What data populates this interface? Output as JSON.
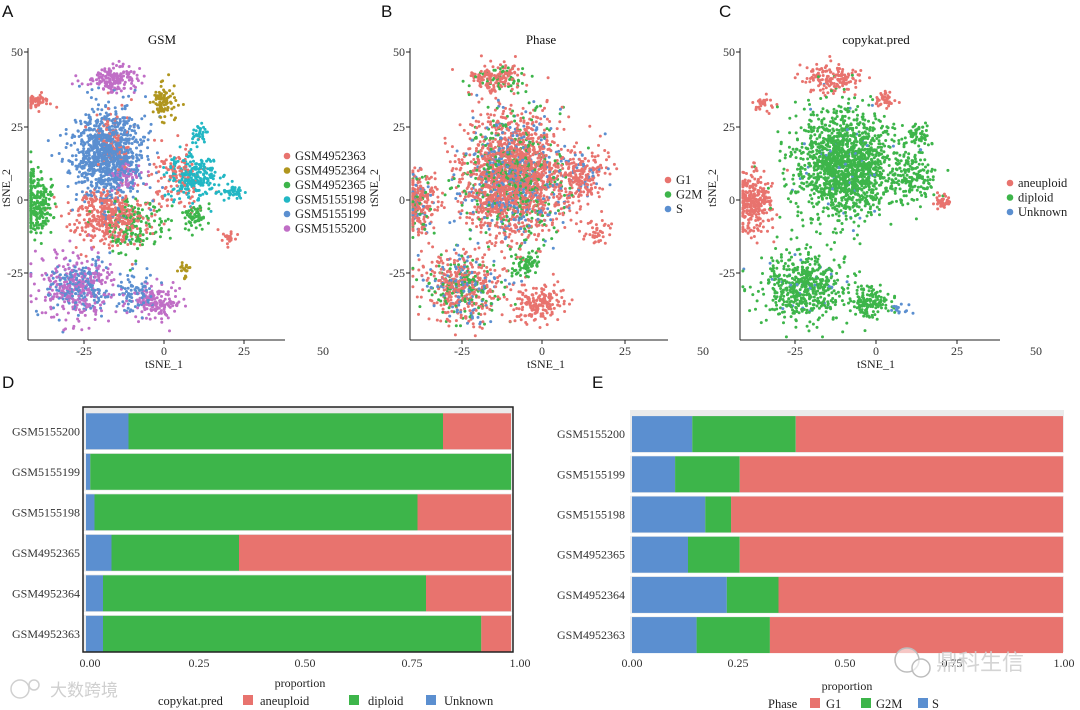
{
  "colors": {
    "red": "#E8736E",
    "green": "#3DB54A",
    "blue": "#5B8FD0",
    "olive": "#B0961E",
    "cyan": "#22B7C4",
    "magenta": "#C06EC6"
  },
  "panels": {
    "a": "A",
    "b": "B",
    "c": "C",
    "d": "D",
    "e": "E"
  },
  "watermarks": {
    "left": "大数跨境",
    "right": "鼎科生信"
  },
  "chart_data": [
    {
      "type": "scatter",
      "panel": "A",
      "title": "GSM",
      "xlabel": "tSNE_1",
      "ylabel": "tSNE_2",
      "xticks": [
        "-25",
        "0",
        "25",
        "50"
      ],
      "yticks": [
        "50",
        "25",
        "0",
        "-25"
      ],
      "xlim": [
        -40,
        50
      ],
      "ylim": [
        -45,
        50
      ],
      "legend_position": "right",
      "series": [
        {
          "name": "GSM4952363",
          "color": "#E8736E",
          "clusters": [
            [
              -12,
              -5,
              12,
              8,
              420
            ],
            [
              -38,
              33,
              5,
              2,
              60
            ],
            [
              -10,
              20,
              6,
              10,
              80
            ],
            [
              12,
              8,
              8,
              10,
              120
            ],
            [
              30,
              -12,
              2,
              2,
              20
            ]
          ]
        },
        {
          "name": "GSM4952364",
          "color": "#B0961E",
          "clusters": [
            [
              8,
              32,
              4,
              5,
              90
            ],
            [
              15,
              -22,
              2,
              3,
              20
            ]
          ]
        },
        {
          "name": "GSM4952365",
          "color": "#3DB54A",
          "clusters": [
            [
              -38,
              0,
              6,
              9,
              300
            ],
            [
              -2,
              -8,
              10,
              8,
              160
            ],
            [
              18,
              -5,
              4,
              4,
              60
            ]
          ]
        },
        {
          "name": "GSM5155198",
          "color": "#22B7C4",
          "clusters": [
            [
              18,
              8,
              8,
              7,
              260
            ],
            [
              32,
              3,
              3,
              2,
              40
            ],
            [
              20,
              22,
              3,
              3,
              30
            ]
          ]
        },
        {
          "name": "GSM5155199",
          "color": "#5B8FD0",
          "clusters": [
            [
              -12,
              15,
              11,
              14,
              950
            ],
            [
              -22,
              -28,
              10,
              8,
              200
            ],
            [
              -2,
              -30,
              6,
              6,
              80
            ]
          ]
        },
        {
          "name": "GSM5155200",
          "color": "#C06EC6",
          "clusters": [
            [
              -10,
              40,
              8,
              4,
              180
            ],
            [
              -23,
              -28,
              12,
              10,
              300
            ],
            [
              5,
              -33,
              7,
              5,
              160
            ],
            [
              -5,
              8,
              5,
              4,
              60
            ]
          ]
        }
      ]
    },
    {
      "type": "scatter",
      "panel": "B",
      "title": "Phase",
      "xlabel": "tSNE_1",
      "ylabel": "tSNE_2",
      "xticks": [
        "-25",
        "0",
        "25",
        "50"
      ],
      "yticks": [
        "50",
        "25",
        "0",
        "-25"
      ],
      "xlim": [
        -40,
        50
      ],
      "ylim": [
        -45,
        50
      ],
      "legend_position": "right",
      "series": [
        {
          "name": "G1",
          "color": "#E8736E",
          "clusters": [
            [
              -4,
              8,
              16,
              18,
              1500
            ],
            [
              -38,
              0,
              6,
              9,
              260
            ],
            [
              -22,
              -28,
              12,
              10,
              320
            ],
            [
              5,
              -33,
              8,
              5,
              180
            ],
            [
              -10,
              40,
              8,
              4,
              140
            ],
            [
              20,
              8,
              8,
              8,
              180
            ],
            [
              25,
              -10,
              4,
              4,
              40
            ]
          ]
        },
        {
          "name": "G2M",
          "color": "#3DB54A",
          "clusters": [
            [
              -4,
              8,
              16,
              18,
              380
            ],
            [
              -22,
              -28,
              12,
              10,
              140
            ],
            [
              0,
              -20,
              5,
              4,
              80
            ],
            [
              -10,
              40,
              8,
              4,
              50
            ],
            [
              -38,
              0,
              6,
              9,
              50
            ]
          ]
        },
        {
          "name": "S",
          "color": "#5B8FD0",
          "clusters": [
            [
              -4,
              8,
              16,
              18,
              380
            ],
            [
              -22,
              -28,
              12,
              10,
              110
            ],
            [
              -38,
              0,
              6,
              9,
              40
            ],
            [
              20,
              8,
              8,
              8,
              40
            ]
          ]
        }
      ]
    },
    {
      "type": "scatter",
      "panel": "C",
      "title": "copykat.pred",
      "xlabel": "tSNE_1",
      "ylabel": "tSNE_2",
      "xticks": [
        "-25",
        "0",
        "25",
        "50"
      ],
      "yticks": [
        "50",
        "25",
        "0",
        "-25"
      ],
      "xlim": [
        -40,
        50
      ],
      "ylim": [
        -45,
        50
      ],
      "legend_position": "right",
      "series": [
        {
          "name": "aneuploid",
          "color": "#E8736E",
          "clusters": [
            [
              -35,
              0,
              6,
              9,
              300
            ],
            [
              -8,
              40,
              8,
              4,
              150
            ],
            [
              10,
              33,
              3,
              3,
              40
            ],
            [
              30,
              0,
              3,
              2,
              40
            ],
            [
              -32,
              32,
              3,
              2,
              30
            ]
          ]
        },
        {
          "name": "diploid",
          "color": "#3DB54A",
          "clusters": [
            [
              -4,
              12,
              16,
              16,
              1500
            ],
            [
              -18,
              -28,
              13,
              10,
              500
            ],
            [
              5,
              -33,
              7,
              5,
              150
            ],
            [
              20,
              8,
              7,
              8,
              150
            ],
            [
              22,
              22,
              3,
              3,
              50
            ]
          ]
        },
        {
          "name": "Unknown",
          "color": "#5B8FD0",
          "clusters": [
            [
              -4,
              12,
              16,
              16,
              40
            ],
            [
              -18,
              -28,
              13,
              10,
              30
            ],
            [
              15,
              -35,
              3,
              2,
              15
            ]
          ]
        }
      ]
    },
    {
      "type": "bar",
      "panel": "D",
      "orientation": "horizontal",
      "stacked": true,
      "categories": [
        "GSM5155200",
        "GSM5155199",
        "GSM5155198",
        "GSM4952365",
        "GSM4952364",
        "GSM4952363"
      ],
      "xlabel": "proportion",
      "xlim": [
        0,
        1
      ],
      "xticks": [
        "0.00",
        "0.25",
        "0.50",
        "0.75",
        "1.00"
      ],
      "legend_title": "copykat.pred",
      "legend_position": "bottom",
      "series": [
        {
          "name": "Unknown",
          "color": "#5B8FD0",
          "values": [
            0.1,
            0.01,
            0.02,
            0.06,
            0.04,
            0.04
          ]
        },
        {
          "name": "diploid",
          "color": "#3DB54A",
          "values": [
            0.74,
            0.99,
            0.76,
            0.3,
            0.76,
            0.89
          ]
        },
        {
          "name": "aneuploid",
          "color": "#E8736E",
          "values": [
            0.16,
            0.0,
            0.22,
            0.64,
            0.2,
            0.07
          ]
        }
      ]
    },
    {
      "type": "bar",
      "panel": "E",
      "orientation": "horizontal",
      "stacked": true,
      "categories": [
        "GSM5155200",
        "GSM5155199",
        "GSM5155198",
        "GSM4952365",
        "GSM4952364",
        "GSM4952363"
      ],
      "xlabel": "proportion",
      "xlim": [
        0,
        1
      ],
      "xticks": [
        "0.00",
        "0.25",
        "0.50",
        "0.75",
        "1.00"
      ],
      "legend_title": "Phase",
      "legend_position": "bottom",
      "series": [
        {
          "name": "S",
          "color": "#5B8FD0",
          "values": [
            0.14,
            0.1,
            0.17,
            0.13,
            0.22,
            0.15
          ]
        },
        {
          "name": "G2M",
          "color": "#3DB54A",
          "values": [
            0.24,
            0.15,
            0.06,
            0.12,
            0.12,
            0.17
          ]
        },
        {
          "name": "G1",
          "color": "#E8736E",
          "values": [
            0.62,
            0.75,
            0.77,
            0.75,
            0.66,
            0.68
          ]
        }
      ]
    }
  ]
}
